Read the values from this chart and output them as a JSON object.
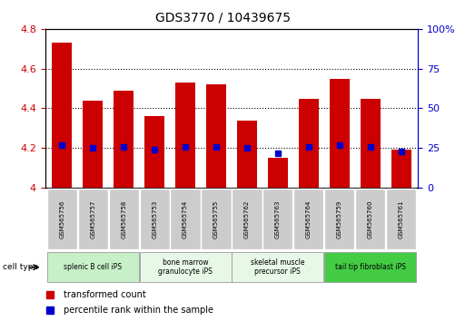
{
  "title": "GDS3770 / 10439675",
  "samples": [
    "GSM565756",
    "GSM565757",
    "GSM565758",
    "GSM565753",
    "GSM565754",
    "GSM565755",
    "GSM565762",
    "GSM565763",
    "GSM565764",
    "GSM565759",
    "GSM565760",
    "GSM565761"
  ],
  "transformed_count": [
    4.73,
    4.44,
    4.49,
    4.36,
    4.53,
    4.52,
    4.34,
    4.15,
    4.45,
    4.55,
    4.45,
    4.19
  ],
  "percentile_rank": [
    27,
    25,
    26,
    24,
    26,
    26,
    25,
    22,
    26,
    27,
    26,
    23
  ],
  "ylim_left": [
    4.0,
    4.8
  ],
  "ylim_right": [
    0,
    100
  ],
  "yticks_left": [
    4.0,
    4.2,
    4.4,
    4.6,
    4.8
  ],
  "ytick_left_labels": [
    "4",
    "4.2",
    "4.4",
    "4.6",
    "4.8"
  ],
  "yticks_right": [
    0,
    25,
    50,
    75,
    100
  ],
  "ytick_right_labels": [
    "0",
    "25",
    "50",
    "75",
    "100%"
  ],
  "cell_type_groups": [
    {
      "label": "splenic B cell iPS",
      "start": 0,
      "end": 2,
      "color": "#c8f0c8"
    },
    {
      "label": "bone marrow\ngranulocyte iPS",
      "start": 3,
      "end": 5,
      "color": "#e8f8e8"
    },
    {
      "label": "skeletal muscle\nprecursor iPS",
      "start": 6,
      "end": 8,
      "color": "#e8f8e8"
    },
    {
      "label": "tail tip fibroblast iPS",
      "start": 9,
      "end": 11,
      "color": "#44cc44"
    }
  ],
  "bar_color": "#cc0000",
  "dot_color": "#0000cc",
  "left_axis_color": "#cc0000",
  "right_axis_color": "#0000cc",
  "grid_color": "#000000",
  "sample_box_color": "#cccccc",
  "legend_items": [
    "transformed count",
    "percentile rank within the sample"
  ]
}
